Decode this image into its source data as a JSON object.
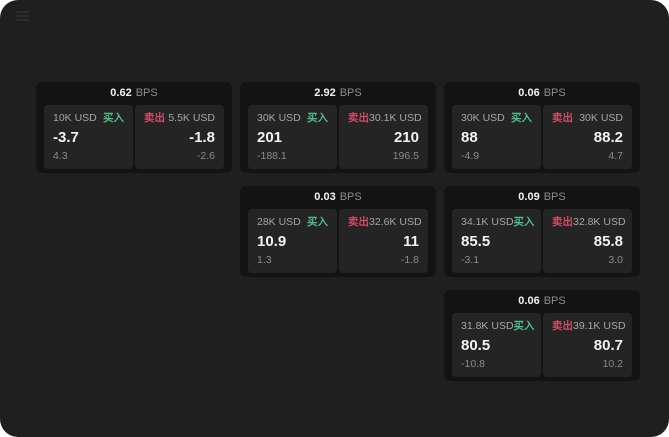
{
  "labels": {
    "bps": "BPS",
    "buy": "买入",
    "sell": "卖出"
  },
  "colors": {
    "screen_background": "#1f1f1f",
    "card_background": "#131313",
    "panel_background": "#242424",
    "buy": "#4dbd8b",
    "sell": "#cf4b66",
    "primary_text": "#f2f2f2",
    "muted_text": "#8c8c8c"
  },
  "cards": [
    {
      "bps": "0.62",
      "buy": {
        "size": "10K USD",
        "price": "-3.7",
        "delta": "4.3"
      },
      "sell": {
        "size": "5.5K USD",
        "price": "-1.8",
        "delta": "-2.6"
      }
    },
    {
      "bps": "2.92",
      "buy": {
        "size": "30K USD",
        "price": "201",
        "delta": "-188.1"
      },
      "sell": {
        "size": "30.1K USD",
        "price": "210",
        "delta": "196.5"
      }
    },
    {
      "bps": "0.06",
      "buy": {
        "size": "30K USD",
        "price": "88",
        "delta": "-4.9"
      },
      "sell": {
        "size": "30K USD",
        "price": "88.2",
        "delta": "4.7"
      }
    },
    {
      "bps": "0.03",
      "buy": {
        "size": "28K USD",
        "price": "10.9",
        "delta": "1.3"
      },
      "sell": {
        "size": "32.6K USD",
        "price": "11",
        "delta": "-1.8"
      }
    },
    {
      "bps": "0.09",
      "buy": {
        "size": "34.1K USD",
        "price": "85.5",
        "delta": "-3.1"
      },
      "sell": {
        "size": "32.8K USD",
        "price": "85.8",
        "delta": "3.0"
      }
    },
    {
      "bps": "0.06",
      "buy": {
        "size": "31.8K USD",
        "price": "80.5",
        "delta": "-10.8"
      },
      "sell": {
        "size": "39.1K USD",
        "price": "80.7",
        "delta": "10.2"
      }
    }
  ]
}
